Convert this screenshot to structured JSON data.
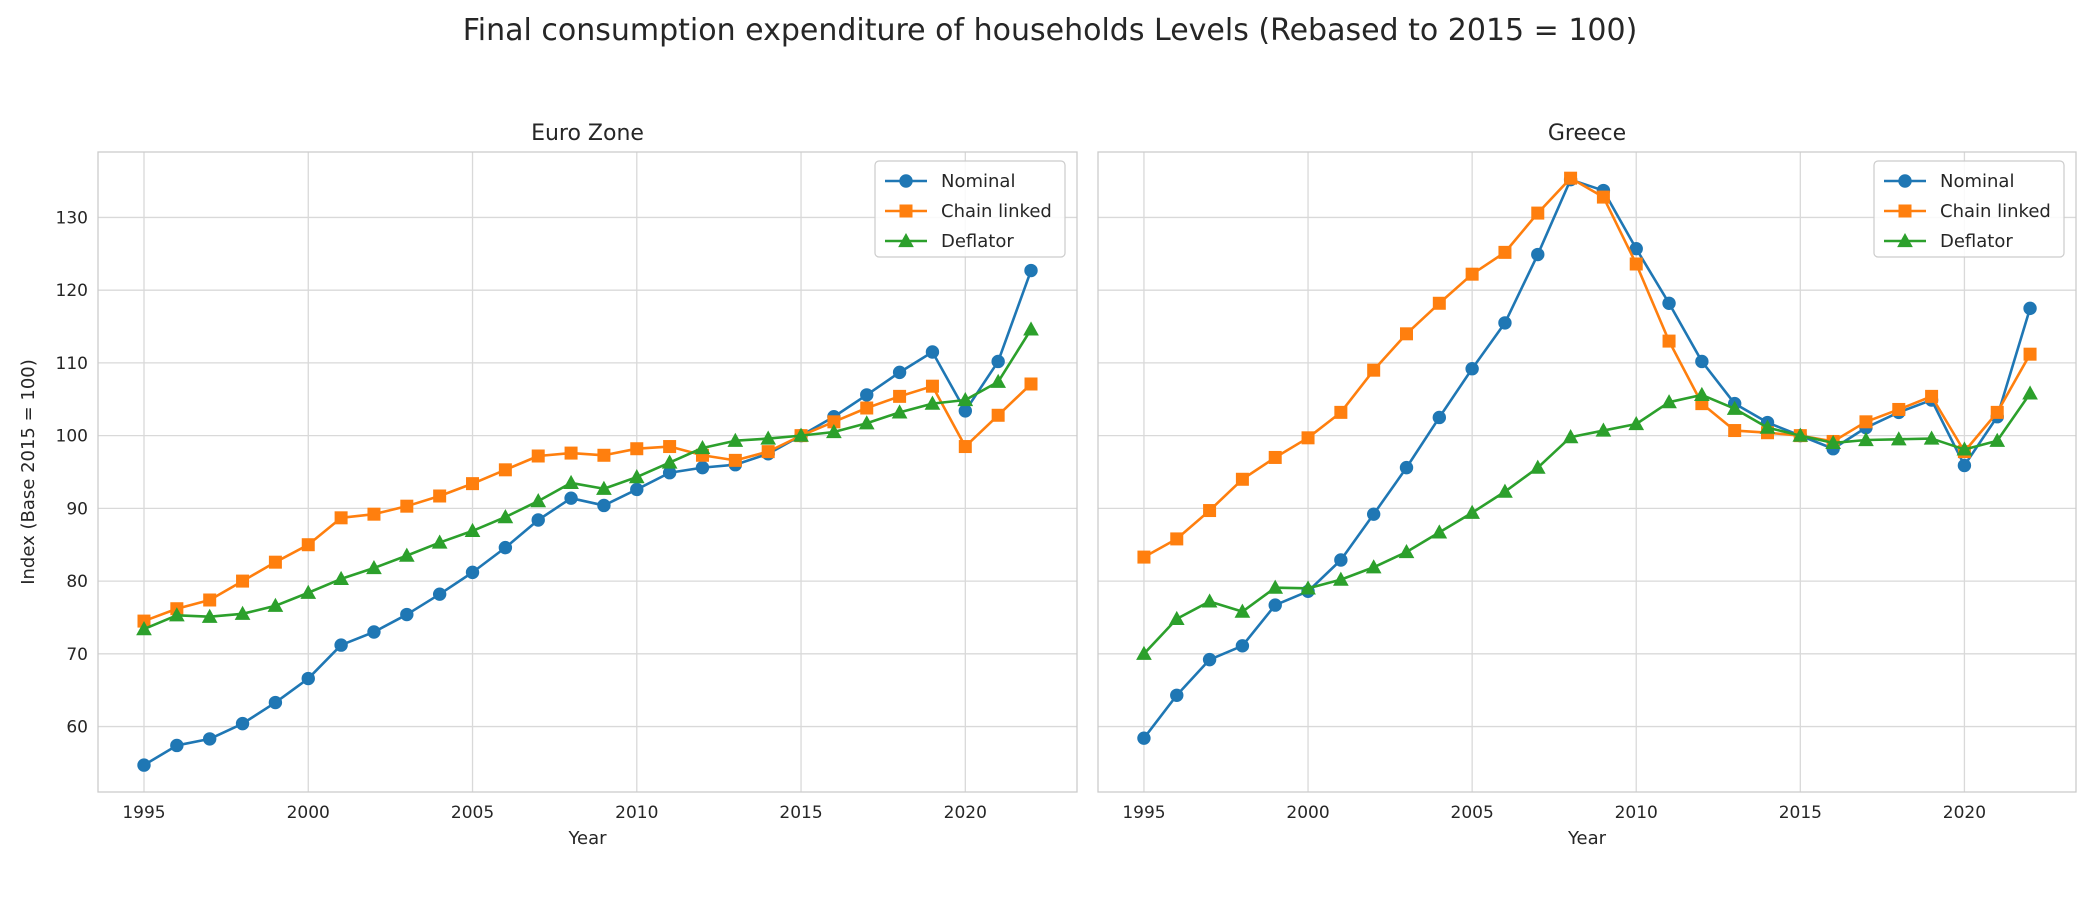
{
  "figure_title": "Final consumption expenditure of households Levels (Rebased to 2015 = 100)",
  "colors": {
    "Nominal": "#1f77b4",
    "Chain linked": "#ff7f0e",
    "Deflator": "#2ca02c"
  },
  "markers": {
    "Nominal": "circle",
    "Chain linked": "square",
    "Deflator": "triangle"
  },
  "chart_data": [
    {
      "type": "line",
      "title": "Euro Zone",
      "xlabel": "Year",
      "ylabel": "Index (Base 2015 = 100)",
      "x": [
        1995,
        1996,
        1997,
        1998,
        1999,
        2000,
        2001,
        2002,
        2003,
        2004,
        2005,
        2006,
        2007,
        2008,
        2009,
        2010,
        2011,
        2012,
        2013,
        2014,
        2015,
        2016,
        2017,
        2018,
        2019,
        2020,
        2021,
        2022
      ],
      "xticks": [
        "1995",
        "2000",
        "2005",
        "2010",
        "2015",
        "2020"
      ],
      "yticks": [
        "60",
        "70",
        "80",
        "90",
        "100",
        "110",
        "120",
        "130"
      ],
      "ylim": [
        51,
        139
      ],
      "xlim": [
        1993.6,
        2023.4
      ],
      "grid": true,
      "legend_position": "top-right",
      "series": [
        {
          "name": "Nominal",
          "values": [
            54.7,
            57.4,
            58.3,
            60.4,
            63.3,
            66.6,
            71.2,
            73.0,
            75.4,
            78.2,
            81.2,
            84.6,
            88.4,
            91.4,
            90.4,
            92.6,
            94.9,
            95.6,
            96.0,
            97.5,
            100.0,
            102.6,
            105.6,
            108.7,
            111.5,
            103.4,
            110.2,
            122.7
          ]
        },
        {
          "name": "Chain linked",
          "values": [
            74.5,
            76.2,
            77.4,
            80.0,
            82.6,
            85.0,
            88.7,
            89.2,
            90.3,
            91.7,
            93.4,
            95.3,
            97.2,
            97.6,
            97.3,
            98.2,
            98.5,
            97.3,
            96.6,
            97.8,
            100.0,
            101.9,
            103.8,
            105.4,
            106.8,
            98.5,
            102.8,
            107.1
          ]
        },
        {
          "name": "Deflator",
          "values": [
            73.4,
            75.3,
            75.1,
            75.5,
            76.6,
            78.4,
            80.3,
            81.8,
            83.5,
            85.3,
            86.9,
            88.8,
            91.0,
            93.5,
            92.7,
            94.3,
            96.3,
            98.3,
            99.3,
            99.6,
            100.0,
            100.5,
            101.7,
            103.2,
            104.4,
            104.9,
            107.4,
            114.6
          ]
        }
      ]
    },
    {
      "type": "line",
      "title": "Greece",
      "xlabel": "Year",
      "ylabel": "",
      "x": [
        1995,
        1996,
        1997,
        1998,
        1999,
        2000,
        2001,
        2002,
        2003,
        2004,
        2005,
        2006,
        2007,
        2008,
        2009,
        2010,
        2011,
        2012,
        2013,
        2014,
        2015,
        2016,
        2017,
        2018,
        2019,
        2020,
        2021,
        2022
      ],
      "xticks": [
        "1995",
        "2000",
        "2005",
        "2010",
        "2015",
        "2020"
      ],
      "yticks": [],
      "ylim": [
        51,
        139
      ],
      "xlim": [
        1993.6,
        2023.4
      ],
      "grid": true,
      "legend_position": "top-right",
      "series": [
        {
          "name": "Nominal",
          "values": [
            58.4,
            64.3,
            69.2,
            71.1,
            76.7,
            78.6,
            82.9,
            89.2,
            95.6,
            102.5,
            109.2,
            115.5,
            124.9,
            135.2,
            133.7,
            125.7,
            118.2,
            110.2,
            104.4,
            101.8,
            100.0,
            98.2,
            101.1,
            103.2,
            104.9,
            95.9,
            102.6,
            117.5
          ]
        },
        {
          "name": "Chain linked",
          "values": [
            83.3,
            85.8,
            89.7,
            94.0,
            97.0,
            99.7,
            103.2,
            109.0,
            114.0,
            118.2,
            122.2,
            125.2,
            130.6,
            135.4,
            132.8,
            123.6,
            113.0,
            104.4,
            100.7,
            100.4,
            100.0,
            99.2,
            101.9,
            103.6,
            105.4,
            97.8,
            103.2,
            111.2
          ]
        },
        {
          "name": "Deflator",
          "values": [
            70.0,
            74.8,
            77.2,
            75.8,
            79.1,
            79.0,
            80.2,
            81.9,
            84.0,
            86.7,
            89.4,
            92.3,
            95.6,
            99.8,
            100.7,
            101.6,
            104.6,
            105.6,
            103.7,
            101.1,
            100.0,
            99.0,
            99.4,
            99.5,
            99.6,
            98.1,
            99.3,
            105.8
          ]
        }
      ]
    }
  ]
}
